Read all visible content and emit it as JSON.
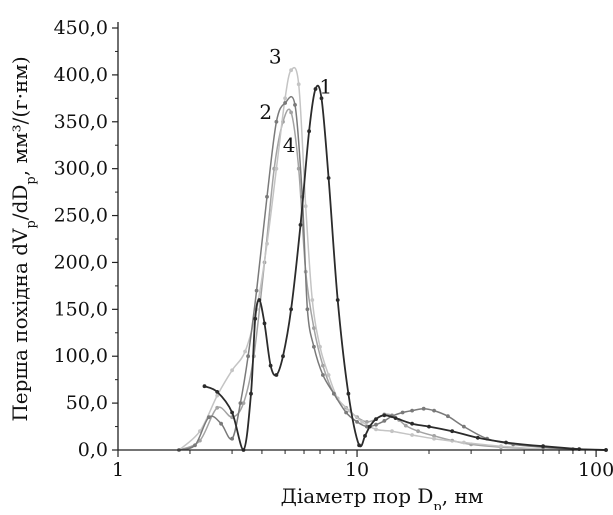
{
  "chart_data": {
    "type": "line",
    "xlabel": "Діаметр пор D",
    "xlabel_sub": "p",
    "xlabel_unit": ", нм",
    "ylabel": "Перша похідна dV",
    "ylabel_sub1": "p",
    "ylabel_mid": "/dD",
    "ylabel_sub2": "p",
    "ylabel_unit": ", мм³/(г·нм)",
    "x_scale": "log",
    "xlim": [
      1,
      110
    ],
    "ylim": [
      0,
      450
    ],
    "x_ticks": [
      1,
      10,
      100
    ],
    "x_tick_labels": [
      "1",
      "10",
      "100"
    ],
    "y_ticks": [
      0,
      50,
      100,
      150,
      200,
      250,
      300,
      350,
      400,
      450
    ],
    "y_tick_labels": [
      "0,0",
      "50,0",
      "100,0",
      "150,0",
      "200,0",
      "250,0",
      "300,0",
      "350,0",
      "400,0",
      "450,0"
    ],
    "grid": false,
    "series": [
      {
        "name": "1",
        "color": "#2b2b2b",
        "x": [
          2.3,
          2.6,
          3.0,
          3.35,
          3.6,
          3.75,
          3.9,
          4.1,
          4.35,
          4.6,
          4.9,
          5.3,
          5.8,
          6.3,
          6.7,
          7.1,
          7.6,
          8.3,
          9.2,
          10.2,
          10.8,
          11.3,
          12.0,
          13.0,
          14.5,
          17.0,
          20.0,
          25.0,
          32.0,
          42.0,
          60.0,
          85.0,
          110.0
        ],
        "y": [
          68,
          62,
          40,
          0,
          60,
          140,
          160,
          135,
          90,
          80,
          100,
          150,
          240,
          340,
          385,
          375,
          290,
          160,
          60,
          5,
          15,
          25,
          33,
          37,
          34,
          28,
          25,
          20,
          13,
          8,
          4,
          1,
          0
        ]
      },
      {
        "name": "2",
        "color": "#7a7a7a",
        "x": [
          1.8,
          2.1,
          2.4,
          2.7,
          3.0,
          3.25,
          3.5,
          3.8,
          4.2,
          4.6,
          5.0,
          5.5,
          5.9,
          6.2,
          6.6,
          7.2,
          8.0,
          9.0,
          10.0,
          11.0,
          12.0,
          13.0,
          14.0,
          15.5,
          17.0,
          19.0,
          21.0,
          24.0,
          28.0,
          35.0,
          45.0,
          60.0,
          80.0,
          110.0
        ],
        "y": [
          0,
          5,
          35,
          28,
          12,
          50,
          100,
          170,
          270,
          350,
          370,
          368,
          270,
          150,
          110,
          80,
          60,
          40,
          30,
          25,
          27,
          31,
          36,
          40,
          42,
          44,
          42,
          36,
          25,
          12,
          6,
          3,
          1,
          0
        ]
      },
      {
        "name": "3",
        "color": "#c4c4c4",
        "x": [
          1.8,
          2.2,
          2.6,
          3.0,
          3.4,
          3.8,
          4.2,
          4.6,
          5.0,
          5.3,
          5.7,
          6.1,
          6.5,
          7.0,
          7.6,
          8.3,
          9.3,
          10.5,
          12.0,
          14.0,
          17.0,
          21.0,
          28.0,
          40.0,
          60.0,
          110.0
        ],
        "y": [
          0,
          20,
          58,
          85,
          105,
          150,
          220,
          300,
          375,
          405,
          390,
          260,
          160,
          110,
          80,
          55,
          42,
          30,
          22,
          20,
          16,
          12,
          8,
          4,
          1,
          0
        ]
      },
      {
        "name": "4",
        "color": "#a3a3a3",
        "x": [
          1.8,
          2.2,
          2.6,
          3.0,
          3.35,
          3.7,
          4.1,
          4.5,
          4.9,
          5.3,
          5.7,
          6.1,
          6.6,
          7.2,
          8.0,
          9.0,
          10.0,
          11.0,
          12.0,
          13.0,
          14.0,
          15.0,
          16.0,
          18.0,
          21.0,
          25.0,
          30.0,
          40.0,
          60.0,
          110.0
        ],
        "y": [
          0,
          10,
          45,
          35,
          50,
          100,
          200,
          300,
          350,
          360,
          300,
          190,
          130,
          90,
          60,
          45,
          35,
          30,
          33,
          38,
          37,
          32,
          26,
          20,
          15,
          10,
          6,
          3,
          1,
          0
        ]
      }
    ],
    "annotations": [
      {
        "text": "1",
        "x": 7.4,
        "y": 380
      },
      {
        "text": "2",
        "x": 4.15,
        "y": 353
      },
      {
        "text": "3",
        "x": 4.55,
        "y": 412
      },
      {
        "text": "4",
        "x": 5.2,
        "y": 318
      }
    ]
  }
}
